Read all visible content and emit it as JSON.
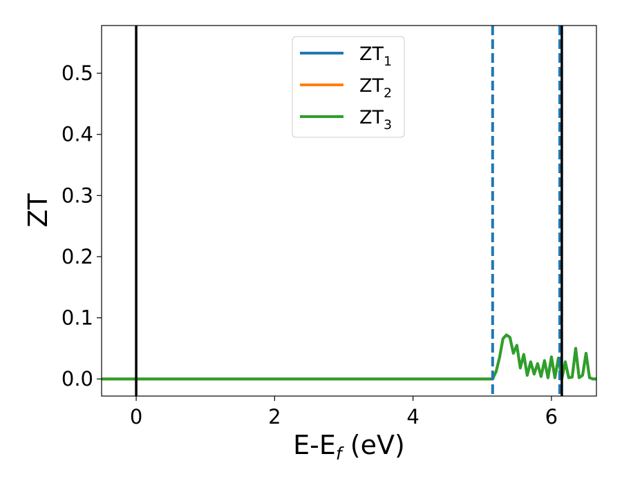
{
  "chart_data": {
    "type": "line",
    "xlabel_main": "E-E",
    "xlabel_sub": "f",
    "xlabel_unit": " (eV)",
    "ylabel": "ZT",
    "xlim": [
      -0.5,
      6.65
    ],
    "ylim": [
      -0.028,
      0.578
    ],
    "xticks": [
      0,
      2,
      4,
      6
    ],
    "xtick_labels": [
      "0",
      "2",
      "4",
      "6"
    ],
    "yticks": [
      0.0,
      0.1,
      0.2,
      0.3,
      0.4,
      0.5
    ],
    "ytick_labels": [
      "0.0",
      "0.1",
      "0.2",
      "0.3",
      "0.4",
      "0.5"
    ],
    "grid": false,
    "legend_position": "top-center",
    "series": [
      {
        "name_main": "ZT",
        "name_sub": "1",
        "color": "#1f77b4",
        "x": [
          -0.5,
          5.15,
          5.2,
          5.25,
          5.3,
          5.35,
          5.4,
          5.45,
          5.5,
          5.55,
          5.6,
          5.65,
          5.7,
          5.75,
          5.8,
          5.85,
          5.9,
          5.95,
          6.0,
          6.05,
          6.1,
          6.15,
          6.2,
          6.25,
          6.3,
          6.35,
          6.4,
          6.45,
          6.5,
          6.55,
          6.6,
          6.65
        ],
        "y": [
          0.0,
          0.0,
          0.012,
          0.035,
          0.066,
          0.072,
          0.068,
          0.042,
          0.055,
          0.018,
          0.04,
          0.006,
          0.028,
          0.008,
          0.025,
          0.004,
          0.03,
          0.002,
          0.036,
          0.002,
          0.034,
          0.0,
          0.028,
          0.002,
          0.003,
          0.05,
          0.002,
          0.006,
          0.042,
          0.002,
          0.0,
          0.0
        ]
      },
      {
        "name_main": "ZT",
        "name_sub": "2",
        "color": "#ff7f0e",
        "x": [
          -0.5,
          5.15,
          5.2,
          5.25,
          5.3,
          5.35,
          5.4,
          5.45,
          5.5,
          5.55,
          5.6,
          5.65,
          5.7,
          5.75,
          5.8,
          5.85,
          5.9,
          5.95,
          6.0,
          6.05,
          6.1,
          6.15,
          6.2,
          6.25,
          6.3,
          6.35,
          6.4,
          6.45,
          6.5,
          6.55,
          6.6,
          6.65
        ],
        "y": [
          0.0,
          0.0,
          0.012,
          0.035,
          0.066,
          0.072,
          0.068,
          0.042,
          0.055,
          0.018,
          0.04,
          0.006,
          0.028,
          0.008,
          0.025,
          0.004,
          0.03,
          0.002,
          0.036,
          0.002,
          0.034,
          0.0,
          0.028,
          0.002,
          0.003,
          0.05,
          0.002,
          0.006,
          0.042,
          0.002,
          0.0,
          0.0
        ]
      },
      {
        "name_main": "ZT",
        "name_sub": "3",
        "color": "#2ca02c",
        "x": [
          -0.5,
          5.15,
          5.2,
          5.25,
          5.3,
          5.35,
          5.4,
          5.45,
          5.5,
          5.55,
          5.6,
          5.65,
          5.7,
          5.75,
          5.8,
          5.85,
          5.9,
          5.95,
          6.0,
          6.05,
          6.1,
          6.15,
          6.2,
          6.25,
          6.3,
          6.35,
          6.4,
          6.45,
          6.5,
          6.55,
          6.6,
          6.65
        ],
        "y": [
          0.0,
          0.0,
          0.012,
          0.035,
          0.066,
          0.072,
          0.068,
          0.042,
          0.055,
          0.018,
          0.04,
          0.006,
          0.028,
          0.008,
          0.025,
          0.004,
          0.03,
          0.002,
          0.036,
          0.002,
          0.034,
          0.0,
          0.028,
          0.002,
          0.003,
          0.05,
          0.002,
          0.006,
          0.042,
          0.002,
          0.0,
          0.0
        ]
      }
    ],
    "vlines": [
      {
        "x": 0.0,
        "color": "#000000",
        "style": "solid"
      },
      {
        "x": 5.15,
        "color": "#1f77b4",
        "style": "dashed"
      },
      {
        "x": 6.12,
        "color": "#1f77b4",
        "style": "dashed"
      },
      {
        "x": 6.15,
        "color": "#000000",
        "style": "solid"
      }
    ]
  }
}
